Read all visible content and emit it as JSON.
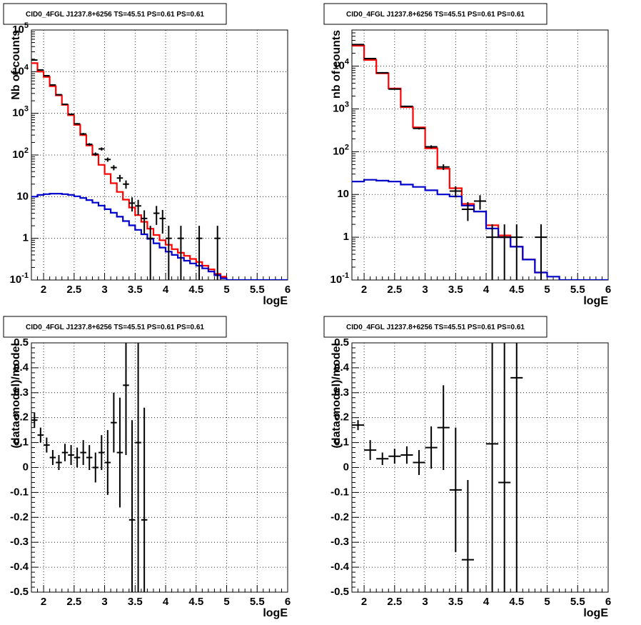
{
  "chart_data": [
    {
      "id": "spectrum-left",
      "type": "line",
      "title": "CID0_4FGL J1237.8+6256 TS=45.51 PS=0.61 PS=0.61",
      "xlabel": "logE",
      "ylabel": "Nb of counts",
      "xlim": [
        1.8,
        6.0
      ],
      "ylim": [
        0.1,
        100000
      ],
      "y_scale": "log",
      "grid": true,
      "x_ticks": [
        "2",
        "2.5",
        "3",
        "3.5",
        "4",
        "4.5",
        "5",
        "5.5",
        "6"
      ],
      "y_ticks": [
        "10^-1",
        "1",
        "10",
        "10^2",
        "10^3",
        "10^4",
        "10^5"
      ],
      "series": [
        {
          "color": "#ff0000",
          "style": "step",
          "bin_width": 0.1,
          "x": [
            1.85,
            1.95,
            2.05,
            2.15,
            2.25,
            2.35,
            2.45,
            2.55,
            2.65,
            2.75,
            2.85,
            2.95,
            3.05,
            3.15,
            3.25,
            3.35,
            3.45,
            3.55,
            3.65,
            3.75,
            3.85,
            3.95,
            4.05,
            4.15,
            4.25,
            4.35,
            4.45,
            4.55,
            4.65,
            4.75,
            4.85,
            4.95
          ],
          "values": [
            16000,
            10000,
            7500,
            4500,
            2700,
            1600,
            900,
            530,
            300,
            170,
            100,
            58,
            35,
            21,
            13,
            8.5,
            5.5,
            3.6,
            2.5,
            1.7,
            1.2,
            0.9,
            0.7,
            0.55,
            0.45,
            0.38,
            0.32,
            0.27,
            0.22,
            0.18,
            0.14,
            0.12
          ]
        },
        {
          "color": "#0000cc",
          "style": "step",
          "bin_width": 0.1,
          "x": [
            1.85,
            1.95,
            2.05,
            2.15,
            2.25,
            2.35,
            2.45,
            2.55,
            2.65,
            2.75,
            2.85,
            2.95,
            3.05,
            3.15,
            3.25,
            3.35,
            3.45,
            3.55,
            3.65,
            3.75,
            3.85,
            3.95,
            4.05,
            4.15,
            4.25,
            4.35,
            4.45,
            4.55,
            4.65,
            4.75,
            4.85,
            4.95,
            5.05,
            5.15,
            5.25,
            5.35,
            5.45,
            5.55,
            5.65,
            5.75,
            5.85,
            5.95
          ],
          "values": [
            10,
            11,
            11.5,
            11.8,
            11.8,
            11.5,
            11,
            10.2,
            9.3,
            8.3,
            7.2,
            6.1,
            5.0,
            4.1,
            3.3,
            2.6,
            2.05,
            1.6,
            1.25,
            0.97,
            0.76,
            0.6,
            0.48,
            0.4,
            0.34,
            0.29,
            0.25,
            0.22,
            0.19,
            0.16,
            0.13,
            0.11,
            0.1,
            0.1,
            0.1,
            0.1,
            0.1,
            0.1,
            0.1,
            0.1,
            0.1,
            0.1
          ]
        }
      ],
      "points": {
        "color": "#000000",
        "x": [
          1.85,
          1.95,
          2.05,
          2.15,
          2.25,
          2.35,
          2.45,
          2.55,
          2.65,
          2.75,
          2.85,
          2.95,
          3.05,
          3.15,
          3.25,
          3.35,
          3.45,
          3.55,
          3.65,
          3.75,
          3.85,
          3.95,
          4.05,
          4.25,
          4.55,
          4.85
        ],
        "y": [
          19000,
          11000,
          8000,
          4800,
          2800,
          1650,
          950,
          560,
          320,
          180,
          105,
          140,
          78,
          50,
          28,
          20,
          7,
          6,
          3,
          1,
          4,
          3,
          1,
          1,
          1,
          1
        ],
        "xerr": 0.05,
        "yerr_lo": [
          140,
          105,
          90,
          70,
          53,
          41,
          31,
          24,
          18,
          13,
          10,
          12,
          9,
          7,
          5.3,
          4.5,
          2.6,
          2.4,
          1.7,
          0.9,
          1.9,
          1.7,
          0.9,
          0.9,
          0.9,
          0.9
        ],
        "yerr_hi": [
          140,
          105,
          90,
          70,
          53,
          41,
          31,
          24,
          18,
          13,
          10,
          12,
          9,
          7,
          5.3,
          4.5,
          2.6,
          2.4,
          1.7,
          1.0,
          2.0,
          1.8,
          1.0,
          1.0,
          1.0,
          1.0
        ]
      }
    },
    {
      "id": "spectrum-right",
      "type": "line",
      "title": "CID0_4FGL J1237.8+6256 TS=45.51 PS=0.61 PS=0.61",
      "xlabel": "logE",
      "ylabel": "nb of counts",
      "xlim": [
        1.8,
        6.0
      ],
      "ylim": [
        0.1,
        70000
      ],
      "y_scale": "log",
      "grid": true,
      "x_ticks": [
        "2",
        "2.5",
        "3",
        "3.5",
        "4",
        "4.5",
        "5",
        "5.5",
        "6"
      ],
      "y_ticks": [
        "10^-1",
        "1",
        "10",
        "10^2",
        "10^3",
        "10^4"
      ],
      "series": [
        {
          "color": "#ff0000",
          "style": "step",
          "bin_width": 0.2,
          "x": [
            1.9,
            2.1,
            2.3,
            2.5,
            2.7,
            2.9,
            3.1,
            3.3,
            3.5,
            3.7,
            3.9,
            4.1,
            4.3,
            4.5,
            4.7,
            4.9
          ],
          "values": [
            30000,
            14000,
            6800,
            3000,
            1100,
            370,
            120,
            40,
            14,
            6,
            4,
            1.9,
            1.1,
            0.6,
            0.3,
            0.15
          ]
        },
        {
          "color": "#0000cc",
          "style": "step",
          "bin_width": 0.2,
          "x": [
            1.9,
            2.1,
            2.3,
            2.5,
            2.7,
            2.9,
            3.1,
            3.3,
            3.5,
            3.7,
            3.9,
            4.1,
            4.3,
            4.5,
            4.7,
            4.9,
            5.1,
            5.3,
            5.5,
            5.7,
            5.9
          ],
          "values": [
            20,
            22,
            21,
            20,
            17,
            15,
            12.5,
            10,
            9,
            5.5,
            4,
            1.6,
            1.0,
            0.6,
            0.3,
            0.15,
            0.12,
            0.1,
            0.1,
            0.1,
            0.1
          ]
        }
      ],
      "points": {
        "color": "#000000",
        "x": [
          1.9,
          2.1,
          2.3,
          2.5,
          2.7,
          2.9,
          3.1,
          3.3,
          3.5,
          3.7,
          3.9,
          4.1,
          4.3,
          4.5,
          4.9
        ],
        "y": [
          32000,
          15000,
          7000,
          2900,
          1150,
          350,
          130,
          44,
          12,
          4.5,
          7,
          1,
          1,
          1,
          1
        ],
        "xerr": 0.1,
        "yerr_lo": [
          180,
          120,
          85,
          55,
          34,
          19,
          11,
          6.6,
          3.5,
          2.1,
          2.6,
          0.9,
          0.9,
          0.9,
          0.9
        ],
        "yerr_hi": [
          180,
          120,
          85,
          55,
          34,
          19,
          11,
          6.6,
          3.5,
          2.1,
          2.6,
          1.0,
          1.0,
          1.0,
          1.0
        ]
      }
    },
    {
      "id": "residual-left",
      "type": "scatter",
      "title": "CID0_4FGL J1237.8+6256 TS=45.51 PS=0.61 PS=0.61",
      "xlabel": "logE",
      "ylabel": "(data-model)/model",
      "xlim": [
        1.8,
        6.0
      ],
      "ylim": [
        -0.5,
        0.5
      ],
      "y_scale": "linear",
      "grid": true,
      "x_ticks": [
        "2",
        "2.5",
        "3",
        "3.5",
        "4",
        "4.5",
        "5",
        "5.5",
        "6"
      ],
      "y_ticks": [
        "-0.5",
        "-0.4",
        "-0.3",
        "-0.2",
        "-0.1",
        "0",
        "0.1",
        "0.2",
        "0.3",
        "0.4",
        "0.5"
      ],
      "points": {
        "color": "#000000",
        "x": [
          1.85,
          1.95,
          2.05,
          2.15,
          2.25,
          2.35,
          2.45,
          2.55,
          2.65,
          2.75,
          2.85,
          2.95,
          3.05,
          3.15,
          3.25,
          3.35,
          3.45,
          3.55,
          3.65
        ],
        "y": [
          0.19,
          0.13,
          0.09,
          0.04,
          0.02,
          0.06,
          0.05,
          0.04,
          0.06,
          0.04,
          0.0,
          0.06,
          0.02,
          0.18,
          0.06,
          0.33,
          -0.21,
          0.1,
          -0.21
        ],
        "xerr": 0.05,
        "yerr": [
          0.03,
          0.03,
          0.03,
          0.03,
          0.03,
          0.035,
          0.04,
          0.04,
          0.05,
          0.05,
          0.06,
          0.07,
          0.13,
          0.12,
          0.22,
          0.28,
          0.4,
          0.7,
          0.45
        ]
      }
    },
    {
      "id": "residual-right",
      "type": "scatter",
      "title": "CID0_4FGL J1237.8+6256 TS=45.51 PS=0.61 PS=0.61",
      "xlabel": "logE",
      "ylabel": "(data-model)/model",
      "xlim": [
        1.8,
        6.0
      ],
      "ylim": [
        -0.5,
        0.5
      ],
      "y_scale": "linear",
      "grid": true,
      "x_ticks": [
        "2",
        "2.5",
        "3",
        "3.5",
        "4",
        "4.5",
        "5",
        "5.5",
        "6"
      ],
      "y_ticks": [
        "-0.5",
        "-0.4",
        "-0.3",
        "-0.2",
        "-0.1",
        "0",
        "0.1",
        "0.2",
        "0.3",
        "0.4",
        "0.5"
      ],
      "points": {
        "color": "#000000",
        "x": [
          1.9,
          2.1,
          2.3,
          2.5,
          2.7,
          2.9,
          3.1,
          3.3,
          3.5,
          3.7,
          4.1,
          4.3,
          4.5
        ],
        "y": [
          0.17,
          0.07,
          0.035,
          0.045,
          0.05,
          0.02,
          0.08,
          0.16,
          -0.09,
          -0.37,
          0.095,
          -0.06,
          0.36
        ],
        "xerr": 0.1,
        "yerr": [
          0.02,
          0.04,
          0.025,
          0.03,
          0.035,
          0.05,
          0.085,
          0.17,
          0.25,
          0.32,
          0.9,
          1.0,
          1.0
        ]
      }
    }
  ]
}
